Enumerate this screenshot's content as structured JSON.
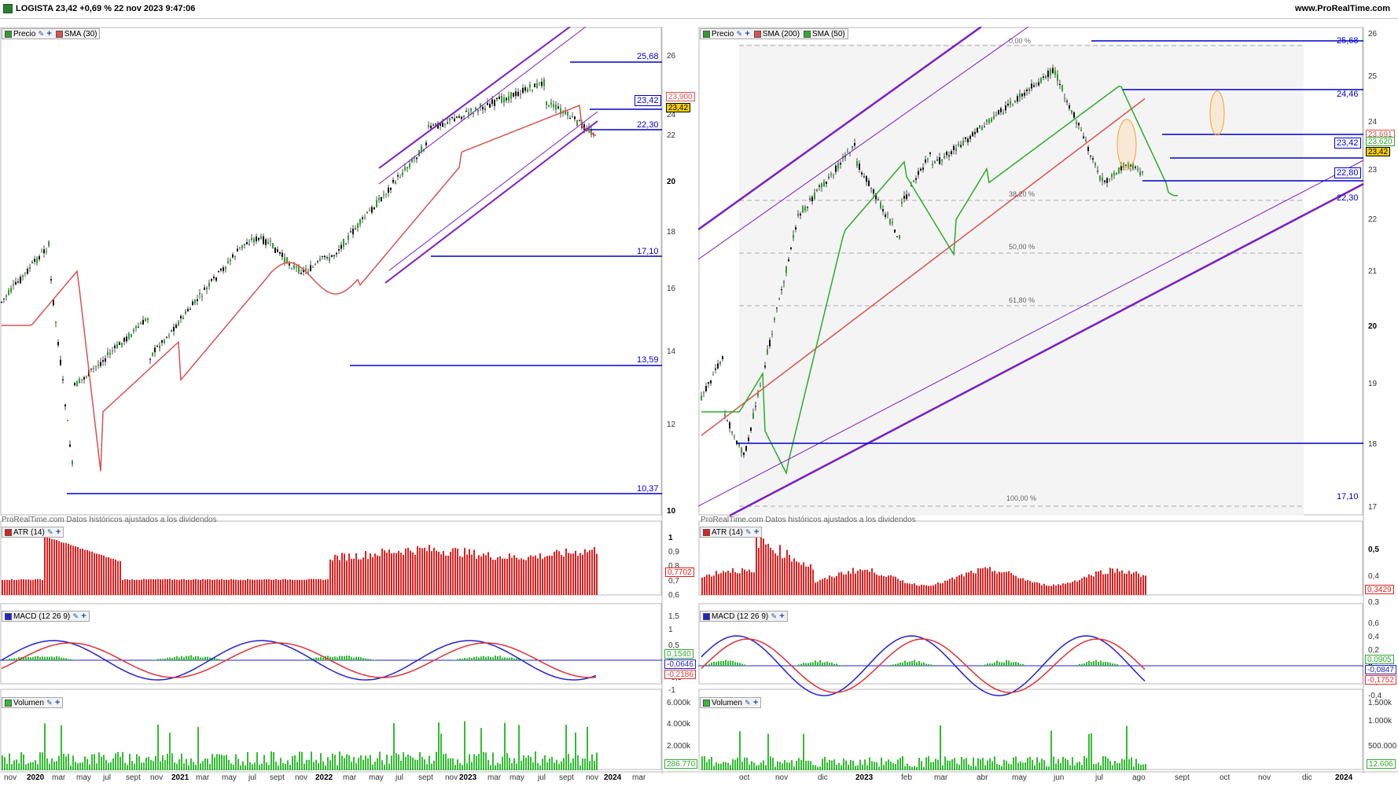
{
  "title_bar": {
    "instrument": "LOGISTA 23,42 +0,69 % 22 nov 2023 9:47:06",
    "brand": "www.ProRealTime.com"
  },
  "colors": {
    "candle_up": "#2e9e2e",
    "candle_down": "#111111",
    "sma_red": "#d9534f",
    "sma_green": "#2eaa2e",
    "channel": "#7a1fc2",
    "level_line": "#0000cc",
    "atr_bar": "#e02020",
    "volume_bar": "#33bb33",
    "macd_line": "#2222cc",
    "signal_line": "#dd3333",
    "price_tag_bg": "#f5d000"
  },
  "left_chart": {
    "legend": {
      "price": "Precio",
      "sma": "SMA (30)"
    },
    "note": "ProRealTime.com  Datos históricos ajustados a los dividendos",
    "price_axis": [
      "26",
      "24",
      "22",
      "20",
      "18",
      "16",
      "14",
      "12",
      "10"
    ],
    "levels": [
      "25,68",
      "23,42",
      "22,30",
      "17,10",
      "13,59",
      "10,37"
    ],
    "tags": {
      "sma": "23,900",
      "price": "23,42"
    },
    "atr": {
      "legend": "ATR (14)",
      "axis": [
        "1",
        "0,9",
        "0,8",
        "0,7",
        "0,6"
      ],
      "value": "0,7702"
    },
    "macd": {
      "legend": "MACD (12 26 9)",
      "axis": [
        "1,5",
        "1",
        "0,5",
        "0",
        "-0,5",
        "-1"
      ],
      "values": [
        "0,1540",
        "-0,0646",
        "-0,2186"
      ]
    },
    "volume": {
      "legend": "Volumen",
      "axis": [
        "6.000k",
        "4.000k",
        "2.000k"
      ],
      "value": "286.770"
    },
    "dates": [
      "nov",
      "2020",
      "mar",
      "may",
      "jul",
      "sept",
      "nov",
      "2021",
      "mar",
      "may",
      "jul",
      "sept",
      "nov",
      "2022",
      "mar",
      "may",
      "jul",
      "sept",
      "nov",
      "2023",
      "mar",
      "may",
      "jul",
      "sept",
      "nov",
      "2024",
      "mar"
    ]
  },
  "right_chart": {
    "legend": {
      "price": "Precio",
      "sma200": "SMA (200)",
      "sma50": "SMA (50)"
    },
    "note": "ProRealTime.com  Datos históricos ajustados a los dividendos",
    "price_axis": [
      "26",
      "25",
      "24",
      "23",
      "22",
      "21",
      "20",
      "19",
      "18",
      "17"
    ],
    "levels": [
      "25,68",
      "24,46",
      "23,42",
      "22,80",
      "22,30",
      "17,10"
    ],
    "fib": [
      "0,00 %",
      "38,20 %",
      "50,00 %",
      "61,80 %",
      "100,00 %"
    ],
    "tags": {
      "sma200": "23,691",
      "sma50": "23,620",
      "price": "23,42"
    },
    "atr": {
      "legend": "ATR (14)",
      "axis": [
        "0,5",
        "0,4",
        "0,3"
      ],
      "value": "0,3429"
    },
    "macd": {
      "legend": "MACD (12 26 9)",
      "axis": [
        "0,6",
        "0,4",
        "0,2",
        "0",
        "-0,2",
        "-0,4"
      ],
      "values": [
        "0,0905",
        "-0,0847",
        "-0,1752"
      ]
    },
    "volume": {
      "legend": "Volumen",
      "axis": [
        "1.500k",
        "1.000k",
        "500.000"
      ],
      "value": "12.606"
    },
    "dates": [
      "oct",
      "nov",
      "dic",
      "2023",
      "feb",
      "mar",
      "abr",
      "may",
      "jun",
      "jul",
      "ago",
      "sept",
      "oct",
      "nov",
      "dic",
      "2024"
    ]
  }
}
